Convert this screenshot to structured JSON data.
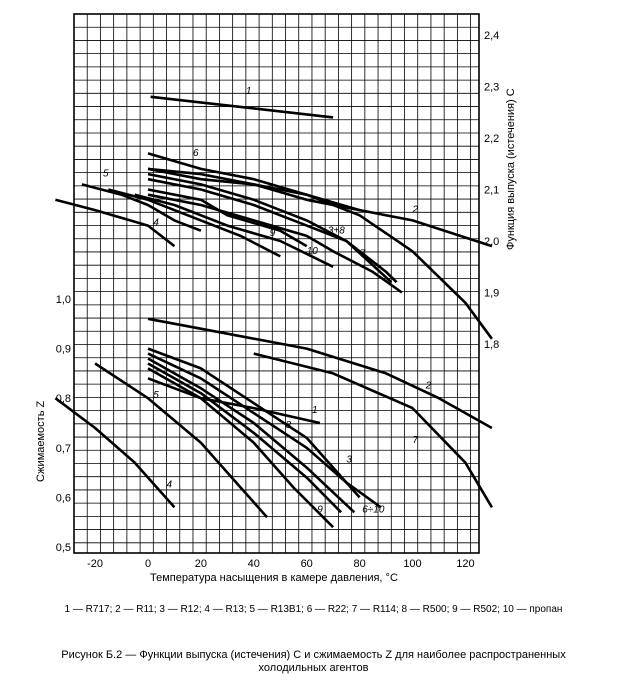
{
  "chart_data": {
    "type": "line",
    "xlabel": "Температура насыщения в камере давления, °С",
    "xlim": [
      -35,
      130
    ],
    "x_ticks": [
      "-20",
      "0",
      "20",
      "40",
      "60",
      "80",
      "100",
      "120"
    ],
    "upper_axis": {
      "ylabel": "Функция выпуска (истечения) С",
      "ticks": [
        "2,4",
        "2,3",
        "2,2",
        "2,1",
        "2,0",
        "1,9",
        "1,8"
      ]
    },
    "lower_axis": {
      "ylabel": "Сжимаемость Z",
      "ylim": [
        0.5,
        1.0
      ],
      "ticks": [
        "1,0",
        "0,9",
        "0,8",
        "0,7",
        "0,6",
        "0,5"
      ]
    },
    "upper_series": [
      {
        "label": "1",
        "points": [
          [
            1,
            2.28
          ],
          [
            70,
            2.24
          ]
        ]
      },
      {
        "label": "2",
        "points": [
          [
            0,
            2.14
          ],
          [
            20,
            2.12
          ],
          [
            40,
            2.11
          ],
          [
            60,
            2.08
          ],
          [
            80,
            2.06
          ],
          [
            100,
            2.04
          ],
          [
            130,
            1.99
          ]
        ]
      },
      {
        "label": "3+8",
        "points": [
          [
            0,
            2.09
          ],
          [
            20,
            2.07
          ],
          [
            40,
            2.04
          ],
          [
            60,
            2.01
          ],
          [
            70,
            1.98
          ],
          [
            85,
            1.94
          ],
          [
            96,
            1.9
          ]
        ]
      },
      {
        "label": "4",
        "points": [
          [
            -35,
            2.08
          ],
          [
            -20,
            2.06
          ],
          [
            0,
            2.03
          ],
          [
            10,
            1.99
          ]
        ]
      },
      {
        "label": "5",
        "points": [
          [
            -25,
            2.11
          ],
          [
            -10,
            2.09
          ],
          [
            0,
            2.07
          ],
          [
            10,
            2.04
          ],
          [
            20,
            2.02
          ]
        ]
      },
      {
        "label": "6",
        "points": [
          [
            0,
            2.17
          ],
          [
            20,
            2.14
          ],
          [
            40,
            2.12
          ],
          [
            60,
            2.09
          ],
          [
            80,
            2.05
          ],
          [
            100,
            1.98
          ],
          [
            120,
            1.88
          ],
          [
            130,
            1.81
          ]
        ]
      },
      {
        "label": "7",
        "points": [
          [
            0,
            2.13
          ],
          [
            20,
            2.11
          ],
          [
            40,
            2.08
          ],
          [
            60,
            2.04
          ],
          [
            75,
            2.0
          ],
          [
            90,
            1.94
          ],
          [
            94,
            1.92
          ]
        ]
      },
      {
        "label": "9",
        "points": [
          [
            -15,
            2.1
          ],
          [
            0,
            2.08
          ],
          [
            20,
            2.04
          ],
          [
            35,
            2.01
          ],
          [
            50,
            1.97
          ]
        ]
      },
      {
        "label": "10",
        "points": [
          [
            -5,
            2.09
          ],
          [
            10,
            2.07
          ],
          [
            30,
            2.03
          ],
          [
            50,
            2.0
          ],
          [
            70,
            1.95
          ]
        ]
      },
      {
        "label": "",
        "points": [
          [
            0,
            2.14
          ],
          [
            20,
            2.13
          ],
          [
            40,
            2.11
          ],
          [
            60,
            2.09
          ],
          [
            80,
            2.06
          ]
        ]
      },
      {
        "label": "",
        "points": [
          [
            0,
            2.12
          ],
          [
            20,
            2.1
          ],
          [
            40,
            2.07
          ],
          [
            55,
            2.04
          ],
          [
            75,
            2.0
          ],
          [
            92,
            1.92
          ]
        ]
      },
      {
        "label": "",
        "points": [
          [
            0,
            2.1
          ],
          [
            20,
            2.08
          ],
          [
            30,
            2.05
          ],
          [
            50,
            2.02
          ],
          [
            60,
            1.99
          ]
        ]
      }
    ],
    "lower_series": [
      {
        "label": "2",
        "points": [
          [
            0,
            0.96
          ],
          [
            30,
            0.93
          ],
          [
            60,
            0.9
          ],
          [
            90,
            0.85
          ],
          [
            110,
            0.8
          ],
          [
            130,
            0.74
          ]
        ]
      },
      {
        "label": "7",
        "points": [
          [
            40,
            0.89
          ],
          [
            70,
            0.85
          ],
          [
            100,
            0.78
          ],
          [
            120,
            0.67
          ],
          [
            130,
            0.58
          ]
        ]
      },
      {
        "label": "1",
        "points": [
          [
            0,
            0.84
          ],
          [
            20,
            0.8
          ],
          [
            40,
            0.78
          ],
          [
            65,
            0.75
          ]
        ]
      },
      {
        "label": "4",
        "points": [
          [
            -35,
            0.8
          ],
          [
            -20,
            0.74
          ],
          [
            -5,
            0.67
          ],
          [
            10,
            0.58
          ]
        ]
      },
      {
        "label": "5",
        "points": [
          [
            -20,
            0.87
          ],
          [
            0,
            0.8
          ],
          [
            20,
            0.71
          ],
          [
            35,
            0.62
          ],
          [
            45,
            0.56
          ]
        ]
      },
      {
        "label": "3",
        "points": [
          [
            0,
            0.89
          ],
          [
            20,
            0.84
          ],
          [
            40,
            0.77
          ],
          [
            60,
            0.7
          ],
          [
            75,
            0.63
          ],
          [
            88,
            0.58
          ]
        ]
      },
      {
        "label": "6÷10",
        "points": [
          [
            0,
            0.9
          ],
          [
            20,
            0.86
          ],
          [
            40,
            0.79
          ],
          [
            60,
            0.72
          ],
          [
            80,
            0.6
          ]
        ]
      },
      {
        "label": "8",
        "points": [
          [
            0,
            0.88
          ],
          [
            20,
            0.82
          ],
          [
            40,
            0.75
          ],
          [
            60,
            0.66
          ],
          [
            78,
            0.57
          ]
        ]
      },
      {
        "label": "9",
        "points": [
          [
            0,
            0.86
          ],
          [
            20,
            0.8
          ],
          [
            40,
            0.71
          ],
          [
            55,
            0.62
          ],
          [
            70,
            0.54
          ]
        ]
      },
      {
        "label": "",
        "points": [
          [
            0,
            0.87
          ],
          [
            20,
            0.81
          ],
          [
            40,
            0.73
          ],
          [
            60,
            0.64
          ],
          [
            73,
            0.57
          ]
        ]
      }
    ],
    "grid": true
  },
  "legend_text": "1 — R717; 2 — R11; 3 — R12; 4 — R13; 5 — R13B1; 6 — R22; 7 — R114; 8 — R500; 9 — R502; 10 — пропан",
  "caption": "Рисунок Б.2 — Функции выпуска (истечения) С и сжимаемость Z для наиболее распространенных холодильных агентов"
}
